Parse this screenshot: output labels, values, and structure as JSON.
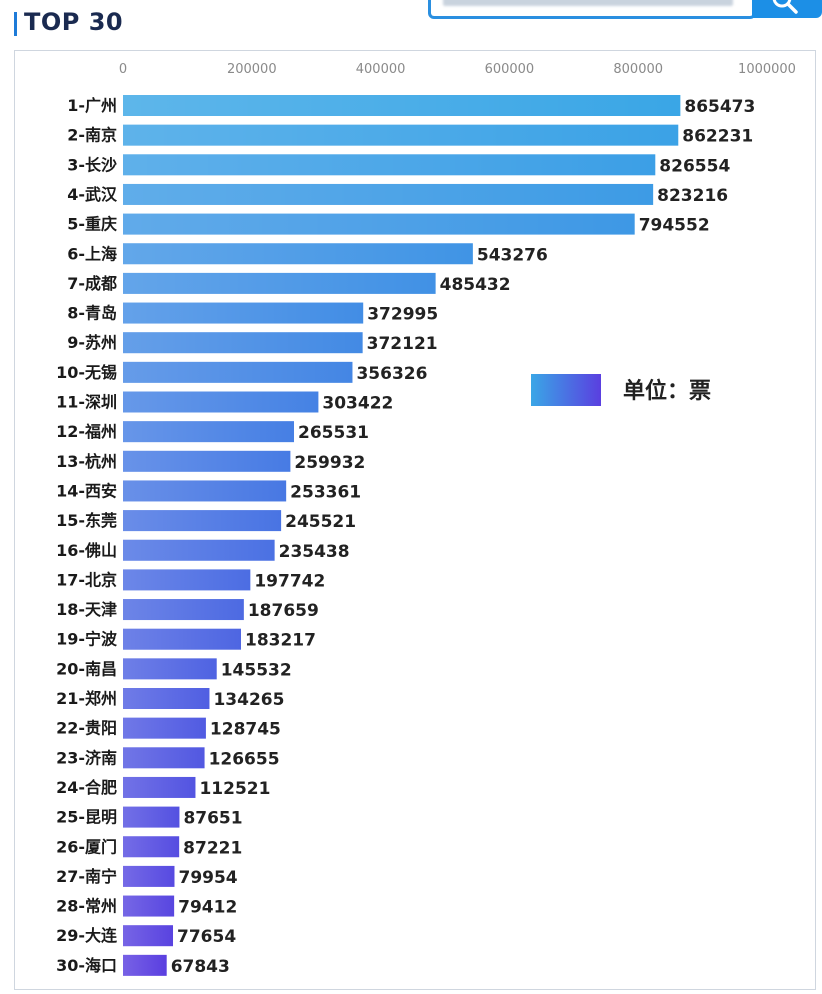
{
  "header": {
    "title": "TOP 30"
  },
  "legend": {
    "label": "单位：票"
  },
  "colors": {
    "bar_start": "#3aa6e6",
    "bar_end": "#5a3fe0",
    "accent": "#1e7bd8"
  },
  "chart_data": {
    "type": "bar",
    "orientation": "horizontal",
    "title": "",
    "xlabel": "",
    "ylabel": "",
    "xlim": [
      0,
      1000000
    ],
    "x_ticks": [
      "0",
      "200000",
      "400000",
      "600000",
      "800000",
      "1000000"
    ],
    "x_tick_values": [
      0,
      200000,
      400000,
      600000,
      800000,
      1000000
    ],
    "categories": [
      "1-广州",
      "2-南京",
      "3-长沙",
      "4-武汉",
      "5-重庆",
      "6-上海",
      "7-成都",
      "8-青岛",
      "9-苏州",
      "10-无锡",
      "11-深圳",
      "12-福州",
      "13-杭州",
      "14-西安",
      "15-东莞",
      "16-佛山",
      "17-北京",
      "18-天津",
      "19-宁波",
      "20-南昌",
      "21-郑州",
      "22-贵阳",
      "23-济南",
      "24-合肥",
      "25-昆明",
      "26-厦门",
      "27-南宁",
      "28-常州",
      "29-大连",
      "30-海口"
    ],
    "values": [
      865473,
      862231,
      826554,
      823216,
      794552,
      543276,
      485432,
      372995,
      372121,
      356326,
      303422,
      265531,
      259932,
      253361,
      245521,
      235438,
      197742,
      187659,
      183217,
      145532,
      134265,
      128745,
      126655,
      112521,
      87651,
      87221,
      79954,
      79412,
      77654,
      67843
    ],
    "legend_position": "right",
    "grid": false
  }
}
